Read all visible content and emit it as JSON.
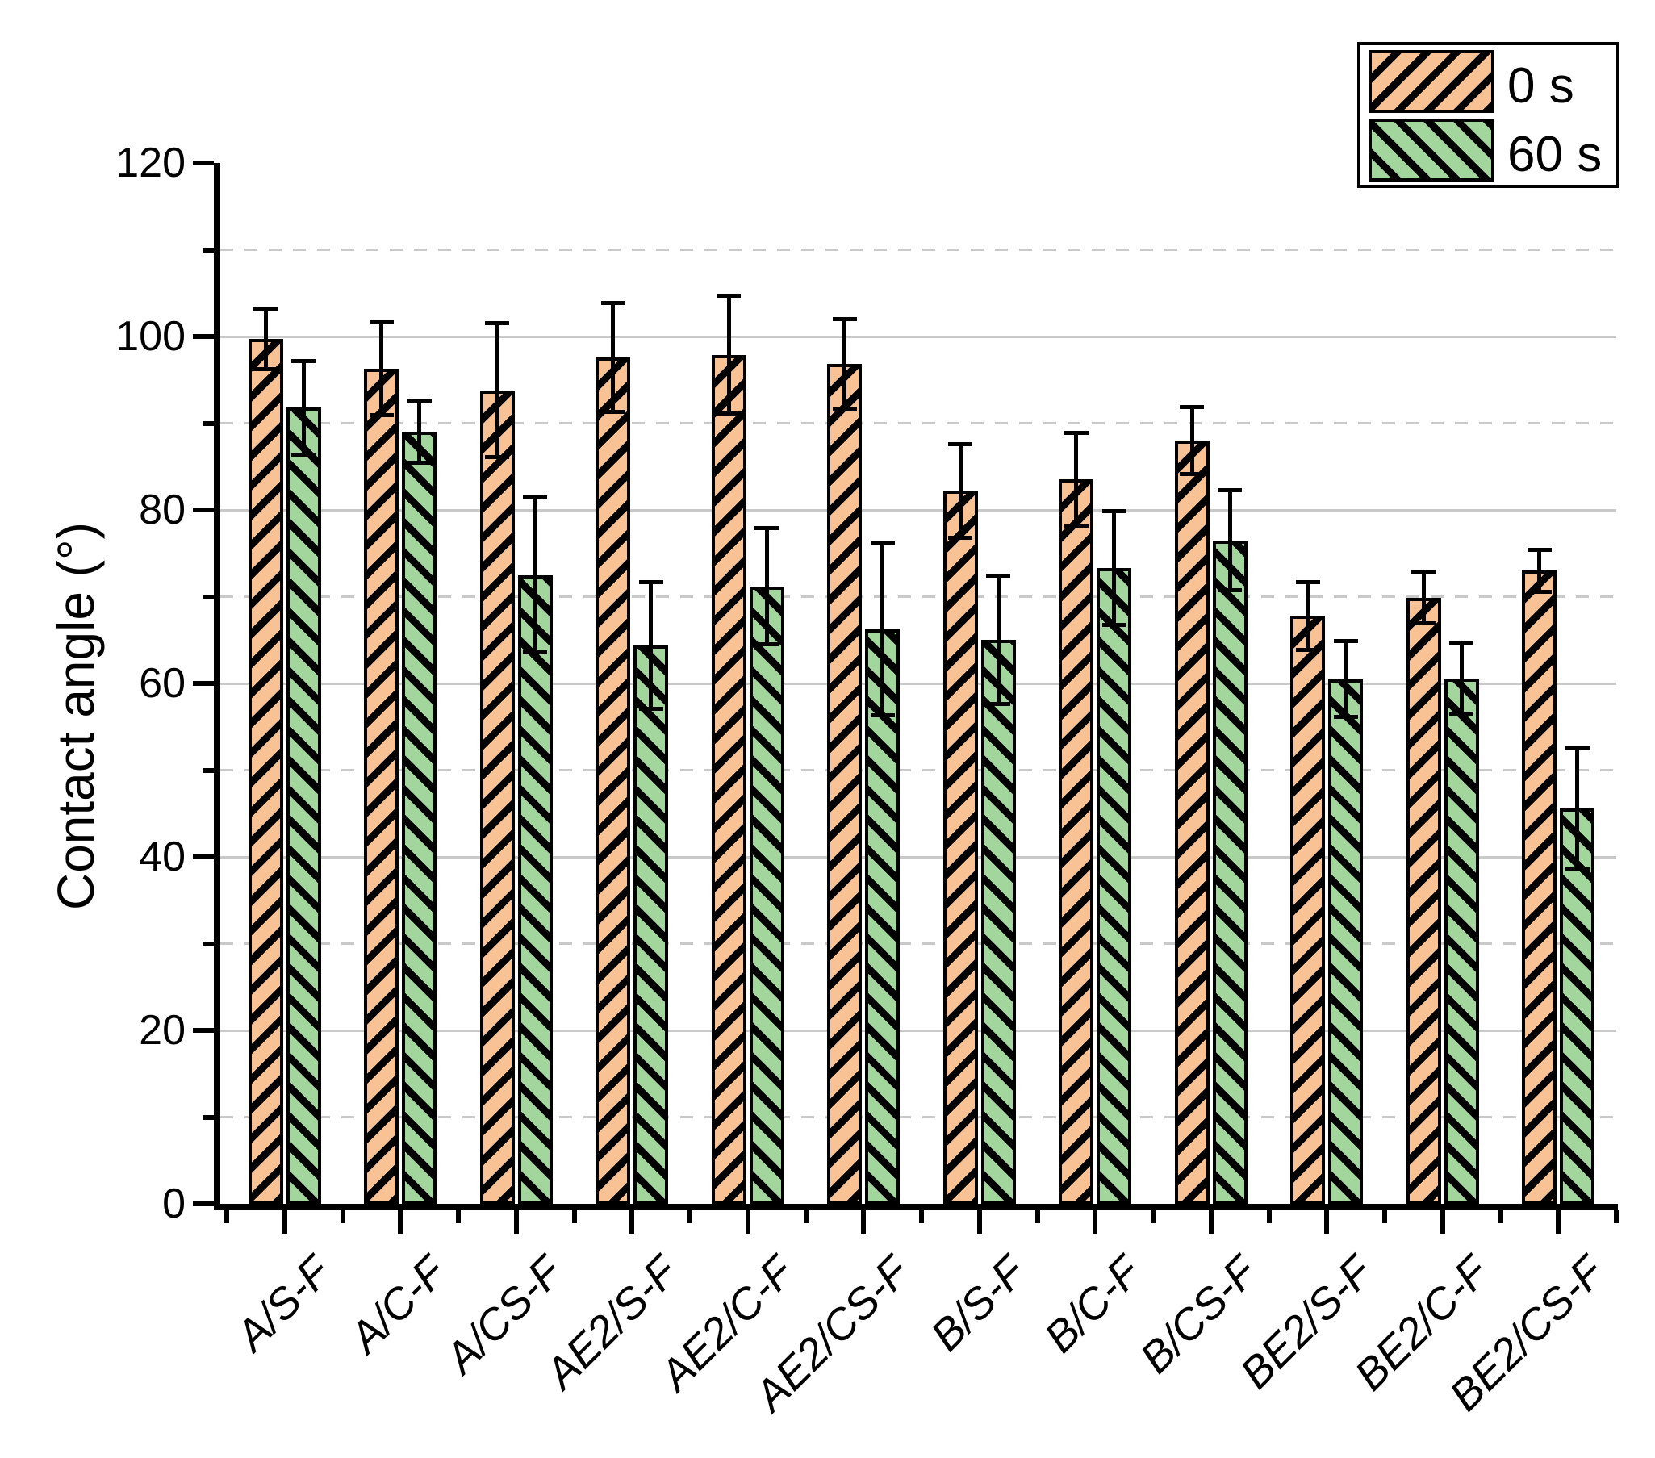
{
  "chart_data": {
    "type": "bar",
    "title": "",
    "xlabel": "",
    "ylabel": "Contact angle (°)",
    "ylim": [
      0,
      120
    ],
    "ytick_major": [
      0,
      20,
      40,
      60,
      80,
      100,
      120
    ],
    "ytick_minor": [
      10,
      30,
      50,
      70,
      90,
      110
    ],
    "grid": "horizontal; solid at major ticks, dashed at minor ticks",
    "legend_position": "top-right",
    "categories": [
      "A/S-F",
      "A/C-F",
      "A/CS-F",
      "AE2/S-F",
      "AE2/C-F",
      "AE2/CS-F",
      "B/S-F",
      "B/C-F",
      "B/CS-F",
      "BE2/S-F",
      "BE2/C-F",
      "BE2/CS-F"
    ],
    "series": [
      {
        "name": "0 s",
        "color": "#F8C294",
        "hatch": "/",
        "values": [
          99.7,
          96.3,
          93.8,
          97.6,
          97.9,
          96.8,
          82.2,
          83.5,
          88.0,
          67.8,
          69.9,
          73.0
        ],
        "errors": [
          3.5,
          5.4,
          7.7,
          6.3,
          6.8,
          5.2,
          5.4,
          5.4,
          3.9,
          3.9,
          3.0,
          2.4
        ]
      },
      {
        "name": "60 s",
        "color": "#A2D69C",
        "hatch": "\\",
        "values": [
          91.8,
          89.0,
          72.5,
          64.4,
          71.2,
          66.2,
          65.0,
          73.3,
          76.5,
          60.5,
          60.6,
          45.6
        ],
        "errors": [
          5.4,
          3.6,
          8.9,
          7.3,
          6.7,
          9.9,
          7.4,
          6.6,
          5.8,
          4.4,
          4.1,
          7.0
        ]
      }
    ]
  },
  "colors": {
    "axis": "#000000",
    "hatch": "#000000",
    "grid": "#C9C9C9",
    "background": "#FFFFFF"
  }
}
